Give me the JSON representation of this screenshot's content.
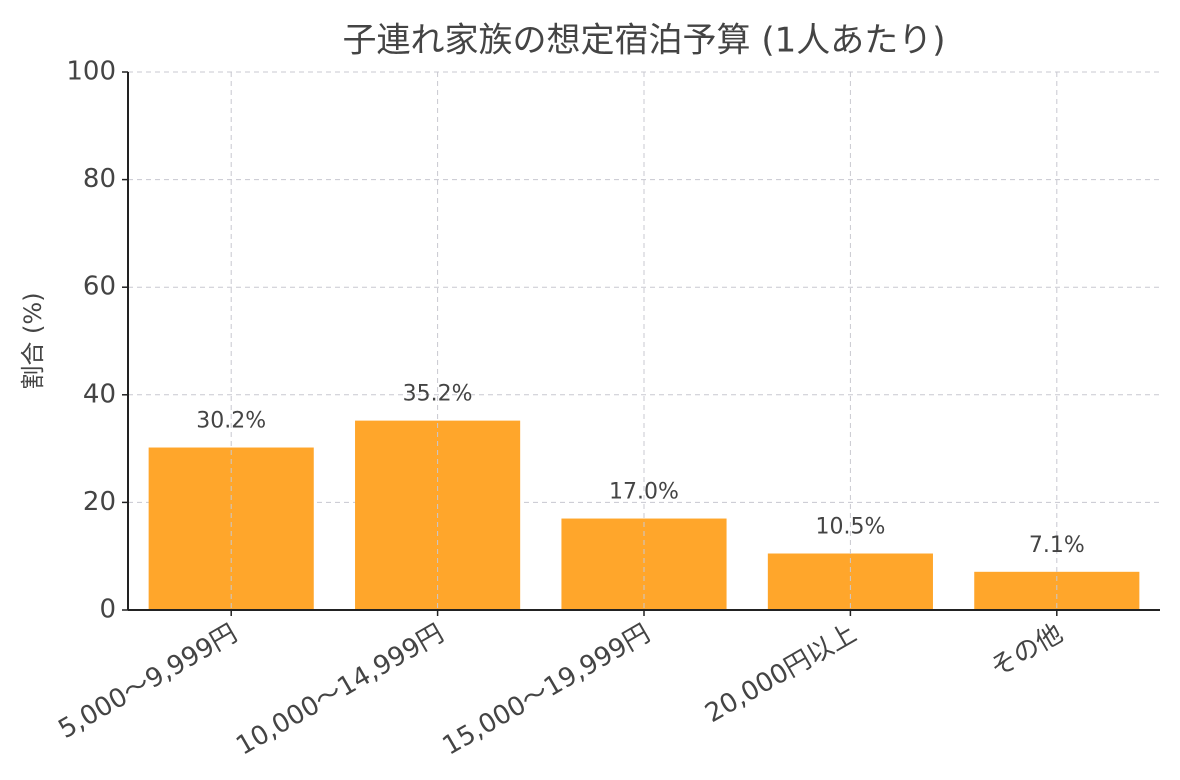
{
  "chart_data": {
    "type": "bar",
    "title": "子連れ家族の想定宿泊予算 (1人あたり)",
    "y_label": "割合 (%)",
    "categories": [
      "5,000〜9,999円",
      "10,000〜14,999円",
      "15,000〜19,999円",
      "20,000円以上",
      "その他"
    ],
    "values": [
      30.2,
      35.2,
      17.0,
      10.5,
      7.1
    ],
    "value_labels": [
      "30.2%",
      "35.2%",
      "17.0%",
      "10.5%",
      "7.1%"
    ],
    "color": "#ffa62b",
    "ylim": [
      0,
      100
    ],
    "yticks": [
      0,
      20,
      40,
      60,
      80,
      100
    ],
    "grid": true
  }
}
